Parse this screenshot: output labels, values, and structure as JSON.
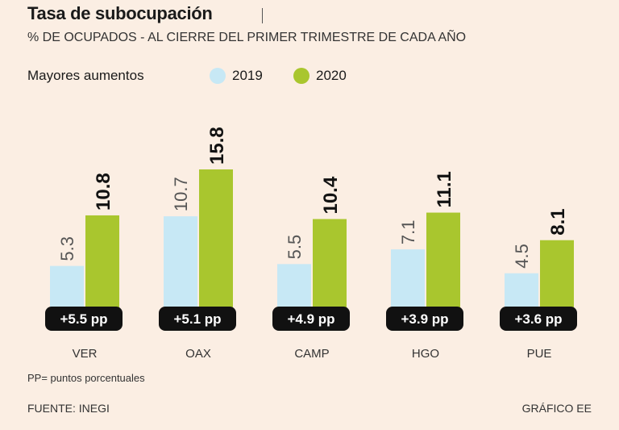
{
  "header": {
    "title": "Tasa de subocupación",
    "subtitle": "% DE OCUPADOS - AL CIERRE DEL PRIMER TRIMESTRE DE CADA AÑO",
    "section_label": "Mayores aumentos"
  },
  "colors": {
    "series_2019": "#c7e8f5",
    "series_2020": "#a9c62e",
    "badge_bg": "#111111",
    "badge_text": "#ffffff",
    "background": "#fbeee3"
  },
  "chart_data": {
    "type": "bar",
    "categories": [
      "VER",
      "OAX",
      "CAMP",
      "HGO",
      "PUE"
    ],
    "series": [
      {
        "name": "2019",
        "values": [
          5.3,
          10.7,
          5.5,
          7.1,
          4.5
        ]
      },
      {
        "name": "2020",
        "values": [
          10.8,
          15.8,
          10.4,
          11.1,
          8.1
        ]
      }
    ],
    "value_labels_2019": [
      "5.3",
      "10.7",
      "5.5",
      "7.1",
      "4.5"
    ],
    "value_labels_2020": [
      "10.8",
      "15.8",
      "10.4",
      "11.1",
      "8.1"
    ],
    "badges": [
      "+5.5 pp",
      "+5.1 pp",
      "+4.9 pp",
      "+3.9 pp",
      "+3.6 pp"
    ],
    "ylim": [
      0,
      15.8
    ],
    "grid": false,
    "legend": "top"
  },
  "footer": {
    "footnote": "PP= puntos porcentuales",
    "source": "FUENTE: INEGI",
    "credit": "GRÁFICO EE"
  }
}
